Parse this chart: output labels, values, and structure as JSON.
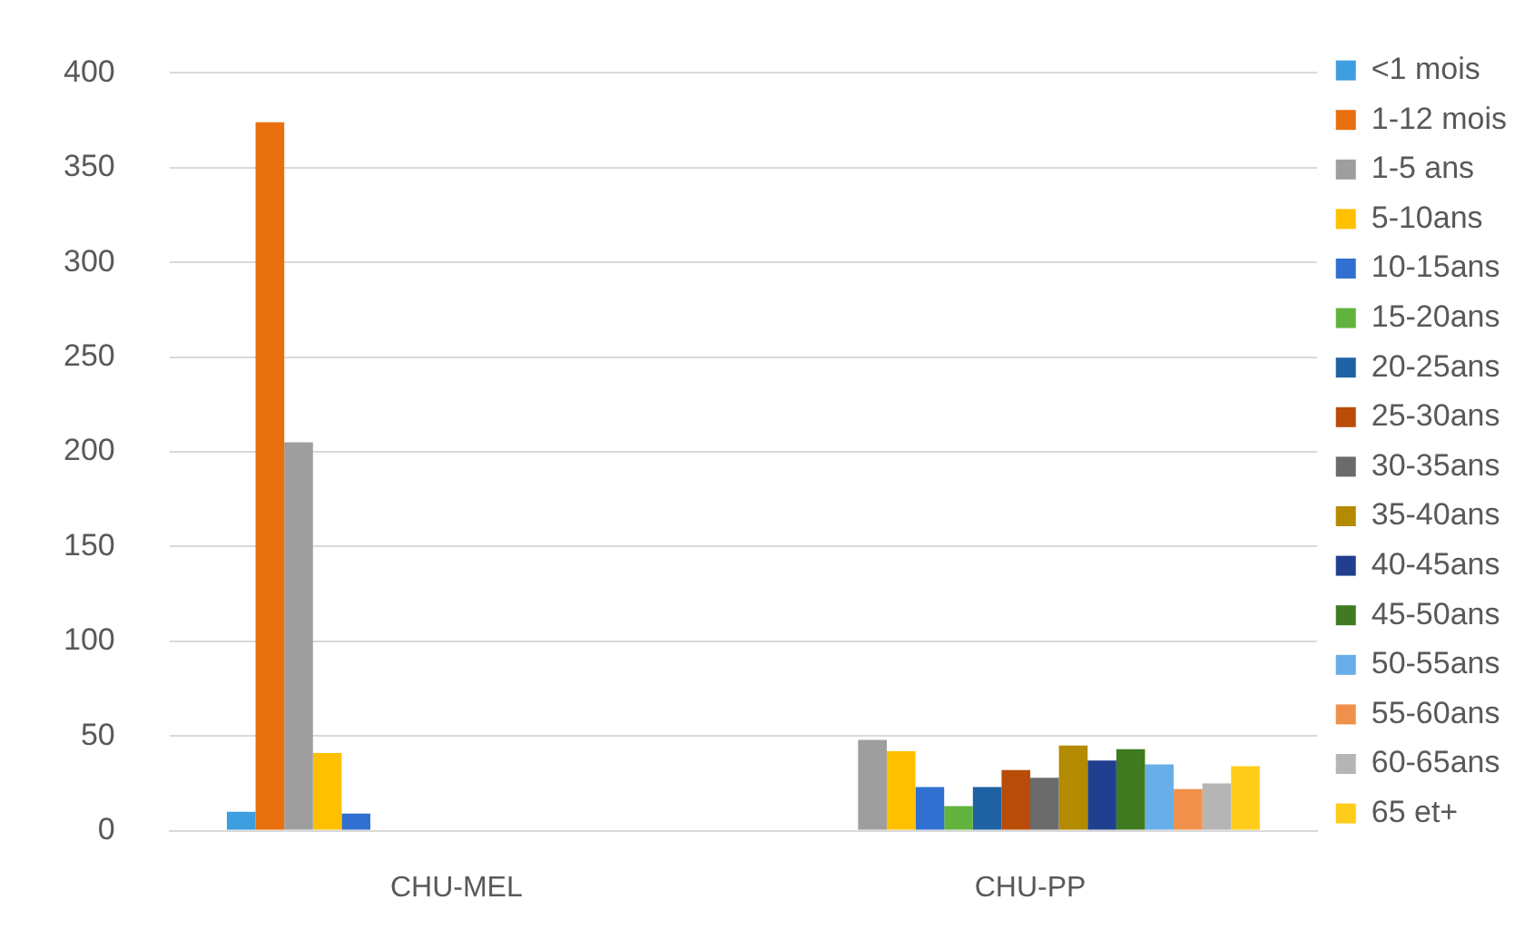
{
  "chart_data": {
    "type": "bar",
    "categories": [
      "CHU-MEL",
      "CHU-PP"
    ],
    "series": [
      {
        "name": "<1 mois",
        "color": "#3d9ee0",
        "values": [
          10,
          0
        ]
      },
      {
        "name": "1-12 mois",
        "color": "#e8700f",
        "values": [
          374,
          0
        ]
      },
      {
        "name": "1-5 ans",
        "color": "#9e9e9e",
        "values": [
          205,
          48
        ]
      },
      {
        "name": "5-10ans",
        "color": "#ffc000",
        "values": [
          41,
          42
        ]
      },
      {
        "name": "10-15ans",
        "color": "#3070d0",
        "values": [
          9,
          23
        ]
      },
      {
        "name": "15-20ans",
        "color": "#62b33e",
        "values": [
          0,
          13
        ]
      },
      {
        "name": "20-25ans",
        "color": "#1f62a3",
        "values": [
          0,
          23
        ]
      },
      {
        "name": "25-30ans",
        "color": "#b84c08",
        "values": [
          0,
          32
        ]
      },
      {
        "name": "30-35ans",
        "color": "#6b6b6b",
        "values": [
          0,
          28
        ]
      },
      {
        "name": "35-40ans",
        "color": "#b38a00",
        "values": [
          0,
          45
        ]
      },
      {
        "name": "40-45ans",
        "color": "#213f8f",
        "values": [
          0,
          37
        ]
      },
      {
        "name": "45-50ans",
        "color": "#3f7a20",
        "values": [
          0,
          43
        ]
      },
      {
        "name": "50-55ans",
        "color": "#68aee8",
        "values": [
          0,
          35
        ]
      },
      {
        "name": "55-60ans",
        "color": "#f0904a",
        "values": [
          0,
          22
        ]
      },
      {
        "name": "60-65ans",
        "color": "#b5b5b5",
        "values": [
          0,
          25
        ]
      },
      {
        "name": "65 et+",
        "color": "#ffcc1a",
        "values": [
          0,
          34
        ]
      }
    ],
    "ylim": [
      0,
      400
    ],
    "yticks": [
      0,
      50,
      100,
      150,
      200,
      250,
      300,
      350,
      400
    ],
    "grid": "y",
    "legend": "right"
  }
}
